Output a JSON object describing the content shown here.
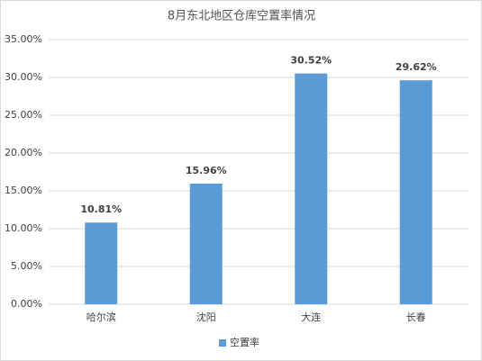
{
  "chart_data": {
    "type": "bar",
    "title": "8月东北地区仓库空置率情况",
    "categories": [
      "哈尔滨",
      "沈阳",
      "大连",
      "长春"
    ],
    "series": [
      {
        "name": "空置率",
        "color": "#5b9bd5",
        "values": [
          10.81,
          15.96,
          30.52,
          29.62
        ],
        "value_labels": [
          "10.81%",
          "15.96%",
          "30.52%",
          "29.62%"
        ]
      }
    ],
    "ylim": [
      0,
      35
    ],
    "yticks": [
      {
        "value": 0,
        "label": "0.00%"
      },
      {
        "value": 5,
        "label": "5.00%"
      },
      {
        "value": 10,
        "label": "10.00%"
      },
      {
        "value": 15,
        "label": "15.00%"
      },
      {
        "value": 20,
        "label": "20.00%"
      },
      {
        "value": 25,
        "label": "25.00%"
      },
      {
        "value": 30,
        "label": "30.00%"
      },
      {
        "value": 35,
        "label": "35.00%"
      }
    ],
    "grid": true,
    "legend": "bottom"
  }
}
